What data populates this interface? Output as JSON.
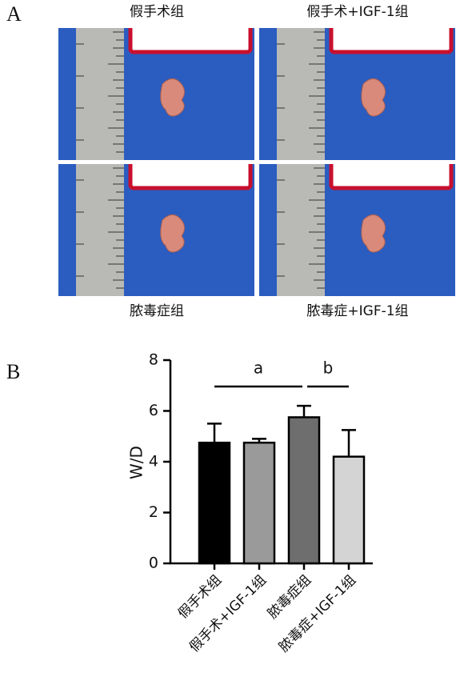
{
  "panel_labels": [
    "A",
    "B"
  ],
  "panel_a": {
    "labels": [
      "假手术组",
      "假手术+IGF-1组",
      "脓毒症组",
      "脓毒症+IGF-1组"
    ]
  },
  "chart_data": {
    "type": "bar",
    "y_label": "W/D",
    "categories": [
      "假手术组",
      "假手术+IGF-1组",
      "脓毒症组",
      "脓毒症+IGF-1组"
    ],
    "values": [
      4.75,
      4.75,
      5.75,
      4.2
    ],
    "errors": [
      0.75,
      0.15,
      0.45,
      1.05
    ],
    "colors": [
      "#000000",
      "#9a9a9a",
      "#6e6e6e",
      "#d4d4d4"
    ],
    "ylim": [
      0,
      8
    ],
    "yticks": [
      0,
      2,
      4,
      6,
      8
    ],
    "annotations": [
      "a",
      "b"
    ]
  }
}
